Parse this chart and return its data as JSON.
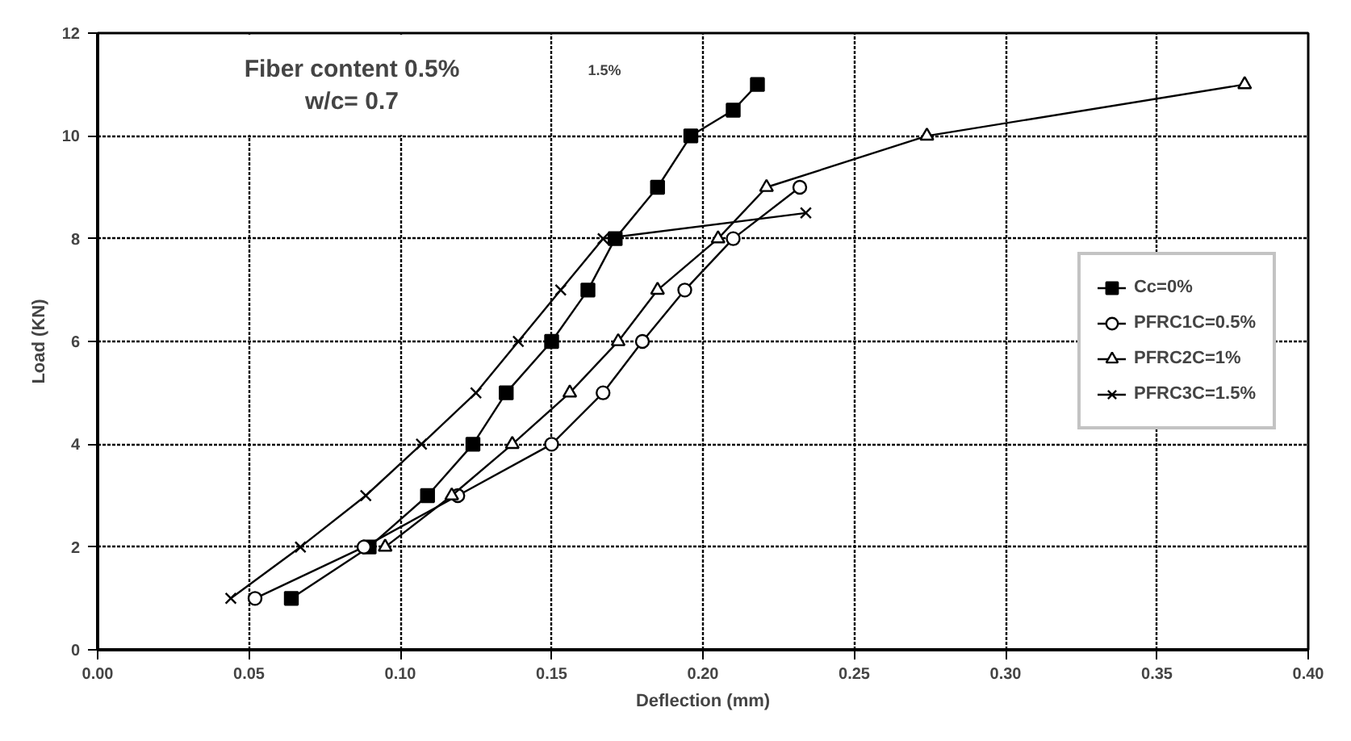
{
  "chart_data": {
    "type": "line",
    "xlabel": "Deflection (mm)",
    "ylabel": "Load (KN)",
    "xlim": [
      0,
      0.4
    ],
    "ylim": [
      0,
      12
    ],
    "xticks": [
      {
        "value": 0,
        "label": "0.00"
      },
      {
        "value": 0.05,
        "label": "0.05"
      },
      {
        "value": 0.1,
        "label": "0.10"
      },
      {
        "value": 0.15,
        "label": "0.15"
      },
      {
        "value": 0.2,
        "label": "0.20"
      },
      {
        "value": 0.25,
        "label": "0.25"
      },
      {
        "value": 0.3,
        "label": "0.30"
      },
      {
        "value": 0.35,
        "label": "0.35"
      },
      {
        "value": 0.4,
        "label": "0.40"
      }
    ],
    "yticks": [
      0,
      2,
      4,
      6,
      8,
      10,
      12
    ],
    "grid": true,
    "legend": "right",
    "annotations": [
      "Fiber content 0.5%\nw/c= 0.7",
      "1.5%"
    ],
    "series": [
      {
        "name": "Cc=0%",
        "color": "#000000",
        "marker": "square",
        "x": [
          0.064,
          0.0897,
          0.109,
          0.124,
          0.135,
          0.15,
          0.162,
          0.171,
          0.185,
          0.196,
          0.21,
          0.218
        ],
        "values": [
          1,
          2,
          3,
          4,
          5,
          6,
          7,
          8,
          9,
          10,
          10.5,
          11
        ]
      },
      {
        "name": "PFRC1C=0.5%",
        "color": "#000000",
        "marker": "circle",
        "x": [
          0.052,
          0.088,
          0.119,
          0.15,
          0.167,
          0.18,
          0.194,
          0.21,
          0.232
        ],
        "values": [
          1,
          2,
          3,
          4,
          5,
          6,
          7,
          8,
          9
        ]
      },
      {
        "name": "PFRC2C=1%",
        "color": "#000000",
        "marker": "triangle",
        "x": [
          0.095,
          0.117,
          0.137,
          0.156,
          0.172,
          0.185,
          0.205,
          0.221,
          0.274,
          0.379
        ],
        "values": [
          2,
          3,
          4,
          5,
          6,
          7,
          8,
          9,
          10,
          11
        ]
      },
      {
        "name": "PFRC3C=1.5%",
        "color": "#000000",
        "marker": "cross",
        "x": [
          0.044,
          0.067,
          0.0886,
          0.107,
          0.125,
          0.139,
          0.153,
          0.167,
          0.234
        ],
        "values": [
          1,
          2,
          3,
          4,
          5,
          6,
          7,
          8,
          8.5
        ]
      }
    ]
  }
}
